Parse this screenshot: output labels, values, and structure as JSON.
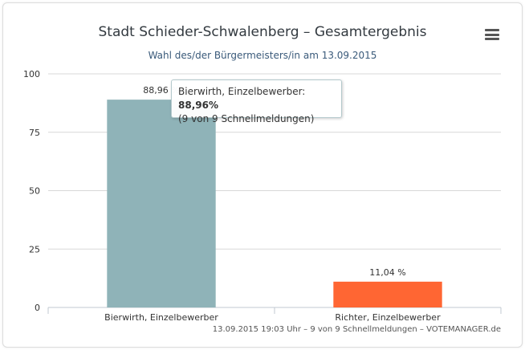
{
  "title": "Stadt Schieder-Schwalenberg – Gesamtergebnis",
  "subtitle": "Wahl des/der Bürgermeisters/in am 13.09.2015",
  "credits": "13.09.2015 19:03 Uhr – 9 von 9 Schnellmeldungen – VOTEMANAGER.de",
  "menu_icon": "hamburger-menu-icon",
  "tooltip": {
    "label": "Bierwirth, Einzelbewerber: ",
    "value": "88,96%",
    "detail": "(9 von 9 Schnellmeldungen)"
  },
  "chart_data": {
    "type": "bar",
    "categories": [
      "Bierwirth, Einzelbewerber",
      "Richter, Einzelbewerber"
    ],
    "values": [
      88.96,
      11.04
    ],
    "data_labels": [
      "88,96 %",
      "11,04 %"
    ],
    "colors": [
      "#8fb3b8",
      "#ff6633"
    ],
    "ylim": [
      0,
      100
    ],
    "yticks": [
      0,
      25,
      50,
      75,
      100
    ],
    "grid": true,
    "legend": false
  }
}
